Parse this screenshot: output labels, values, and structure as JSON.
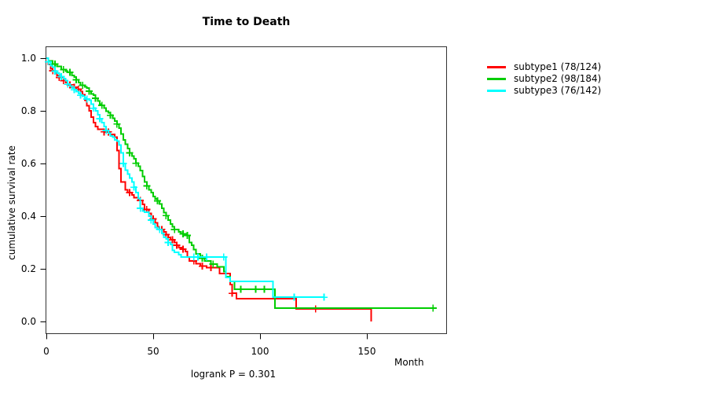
{
  "page": {
    "background": "#FFFFFF"
  },
  "chart_data": {
    "type": "line",
    "variant": "kaplan-meier-survival",
    "title": "Time to Death",
    "xlabel": "Month",
    "ylabel": "cumulative survival rate",
    "annotation": "logrank P = 0.301",
    "grid": false,
    "legend_position": "right-outside-top",
    "xlim": [
      0,
      187
    ],
    "ylim": [
      0,
      1
    ],
    "x_ticks": [
      {
        "value": 0,
        "label": "0"
      },
      {
        "value": 50,
        "label": "50"
      },
      {
        "value": 100,
        "label": "100"
      },
      {
        "value": 150,
        "label": "150"
      }
    ],
    "y_ticks": [
      {
        "value": 1.0,
        "label": "1.0"
      },
      {
        "value": 0.8,
        "label": "0.8"
      },
      {
        "value": 0.6,
        "label": "0.6"
      },
      {
        "value": 0.4,
        "label": "0.4"
      },
      {
        "value": 0.2,
        "label": "0.2"
      },
      {
        "value": 0.0,
        "label": "0.0"
      }
    ],
    "box_color": "#333333",
    "tick_color": "#000000",
    "series": [
      {
        "name": "subtype1",
        "label": "subtype1 (78/124)",
        "events": 78,
        "n": 124,
        "color": "#FF0000",
        "terminal": "event",
        "steps": [
          [
            0,
            1.0
          ],
          [
            1,
            0.976
          ],
          [
            2,
            0.96
          ],
          [
            3,
            0.952
          ],
          [
            4,
            0.944
          ],
          [
            5,
            0.935
          ],
          [
            6,
            0.927
          ],
          [
            7,
            0.915
          ],
          [
            9,
            0.907
          ],
          [
            10,
            0.899
          ],
          [
            12,
            0.89
          ],
          [
            14,
            0.882
          ],
          [
            16,
            0.873
          ],
          [
            17,
            0.861
          ],
          [
            18,
            0.84
          ],
          [
            19,
            0.82
          ],
          [
            20,
            0.8
          ],
          [
            21,
            0.776
          ],
          [
            22,
            0.755
          ],
          [
            23,
            0.74
          ],
          [
            24,
            0.73
          ],
          [
            27,
            0.72
          ],
          [
            30,
            0.71
          ],
          [
            32,
            0.7
          ],
          [
            33,
            0.65
          ],
          [
            34,
            0.58
          ],
          [
            35,
            0.53
          ],
          [
            37,
            0.5
          ],
          [
            38,
            0.49
          ],
          [
            40,
            0.48
          ],
          [
            41,
            0.47
          ],
          [
            43,
            0.46
          ],
          [
            45,
            0.445
          ],
          [
            46,
            0.425
          ],
          [
            48,
            0.41
          ],
          [
            49,
            0.39
          ],
          [
            51,
            0.375
          ],
          [
            52,
            0.36
          ],
          [
            53,
            0.35
          ],
          [
            55,
            0.34
          ],
          [
            56,
            0.33
          ],
          [
            57,
            0.32
          ],
          [
            58,
            0.31
          ],
          [
            60,
            0.3
          ],
          [
            61,
            0.29
          ],
          [
            62,
            0.28
          ],
          [
            64,
            0.275
          ],
          [
            65,
            0.265
          ],
          [
            66,
            0.245
          ],
          [
            67,
            0.23
          ],
          [
            70,
            0.22
          ],
          [
            72,
            0.21
          ],
          [
            75,
            0.205
          ],
          [
            81,
            0.182
          ],
          [
            86,
            0.14
          ],
          [
            87,
            0.107
          ],
          [
            89,
            0.087
          ],
          [
            117,
            0.048
          ],
          [
            152,
            0.0
          ]
        ],
        "censors": [
          [
            3,
            0.952
          ],
          [
            6,
            0.927
          ],
          [
            8,
            0.915
          ],
          [
            11,
            0.899
          ],
          [
            13,
            0.89
          ],
          [
            15,
            0.882
          ],
          [
            27,
            0.72
          ],
          [
            29,
            0.72
          ],
          [
            39,
            0.49
          ],
          [
            44,
            0.46
          ],
          [
            47,
            0.425
          ],
          [
            50,
            0.39
          ],
          [
            54,
            0.35
          ],
          [
            56,
            0.33
          ],
          [
            59,
            0.31
          ],
          [
            61,
            0.29
          ],
          [
            64,
            0.275
          ],
          [
            69,
            0.23
          ],
          [
            73,
            0.21
          ],
          [
            77,
            0.205
          ],
          [
            87,
            0.107
          ],
          [
            126,
            0.048
          ]
        ]
      },
      {
        "name": "subtype2",
        "label": "subtype2 (98/184)",
        "events": 98,
        "n": 184,
        "color": "#00CD00",
        "terminal": "censored",
        "steps": [
          [
            0,
            1.0
          ],
          [
            1,
            0.989
          ],
          [
            3,
            0.978
          ],
          [
            5,
            0.968
          ],
          [
            7,
            0.957
          ],
          [
            9,
            0.951
          ],
          [
            10,
            0.946
          ],
          [
            12,
            0.935
          ],
          [
            13,
            0.929
          ],
          [
            14,
            0.918
          ],
          [
            15,
            0.908
          ],
          [
            16,
            0.897
          ],
          [
            18,
            0.891
          ],
          [
            19,
            0.886
          ],
          [
            20,
            0.875
          ],
          [
            21,
            0.864
          ],
          [
            22,
            0.859
          ],
          [
            23,
            0.848
          ],
          [
            24,
            0.837
          ],
          [
            25,
            0.826
          ],
          [
            26,
            0.821
          ],
          [
            27,
            0.81
          ],
          [
            28,
            0.799
          ],
          [
            29,
            0.793
          ],
          [
            30,
            0.783
          ],
          [
            31,
            0.772
          ],
          [
            32,
            0.761
          ],
          [
            33,
            0.75
          ],
          [
            34,
            0.734
          ],
          [
            35,
            0.712
          ],
          [
            36,
            0.69
          ],
          [
            37,
            0.673
          ],
          [
            38,
            0.657
          ],
          [
            39,
            0.64
          ],
          [
            40,
            0.629
          ],
          [
            41,
            0.618
          ],
          [
            42,
            0.601
          ],
          [
            43,
            0.59
          ],
          [
            44,
            0.573
          ],
          [
            45,
            0.55
          ],
          [
            46,
            0.53
          ],
          [
            47,
            0.515
          ],
          [
            48,
            0.5
          ],
          [
            49,
            0.49
          ],
          [
            50,
            0.475
          ],
          [
            51,
            0.465
          ],
          [
            52,
            0.458
          ],
          [
            53,
            0.447
          ],
          [
            54,
            0.43
          ],
          [
            55,
            0.413
          ],
          [
            56,
            0.402
          ],
          [
            57,
            0.385
          ],
          [
            58,
            0.37
          ],
          [
            59,
            0.36
          ],
          [
            60,
            0.349
          ],
          [
            62,
            0.34
          ],
          [
            63,
            0.333
          ],
          [
            65,
            0.327
          ],
          [
            67,
            0.3
          ],
          [
            68,
            0.29
          ],
          [
            69,
            0.273
          ],
          [
            70,
            0.257
          ],
          [
            72,
            0.24
          ],
          [
            74,
            0.23
          ],
          [
            77,
            0.218
          ],
          [
            80,
            0.207
          ],
          [
            83,
            0.19
          ],
          [
            84,
            0.17
          ],
          [
            86,
            0.152
          ],
          [
            88,
            0.123
          ],
          [
            107,
            0.051
          ],
          [
            181,
            0.051
          ]
        ],
        "censors": [
          [
            4,
            0.978
          ],
          [
            8,
            0.957
          ],
          [
            11,
            0.946
          ],
          [
            14,
            0.918
          ],
          [
            17,
            0.897
          ],
          [
            20,
            0.875
          ],
          [
            23,
            0.848
          ],
          [
            26,
            0.821
          ],
          [
            30,
            0.783
          ],
          [
            33,
            0.75
          ],
          [
            39,
            0.64
          ],
          [
            42,
            0.601
          ],
          [
            47,
            0.515
          ],
          [
            52,
            0.458
          ],
          [
            56,
            0.402
          ],
          [
            60,
            0.349
          ],
          [
            64,
            0.333
          ],
          [
            66,
            0.327
          ],
          [
            73,
            0.24
          ],
          [
            78,
            0.218
          ],
          [
            91,
            0.123
          ],
          [
            98,
            0.123
          ],
          [
            102,
            0.123
          ],
          [
            181,
            0.051
          ]
        ]
      },
      {
        "name": "subtype3",
        "label": "subtype3 (76/142)",
        "events": 76,
        "n": 142,
        "color": "#00FFFF",
        "terminal": "censored",
        "steps": [
          [
            0,
            1.0
          ],
          [
            1,
            0.986
          ],
          [
            2,
            0.972
          ],
          [
            3,
            0.965
          ],
          [
            4,
            0.951
          ],
          [
            5,
            0.944
          ],
          [
            6,
            0.937
          ],
          [
            7,
            0.93
          ],
          [
            8,
            0.923
          ],
          [
            9,
            0.915
          ],
          [
            10,
            0.901
          ],
          [
            11,
            0.894
          ],
          [
            12,
            0.887
          ],
          [
            13,
            0.88
          ],
          [
            14,
            0.873
          ],
          [
            15,
            0.866
          ],
          [
            16,
            0.859
          ],
          [
            17,
            0.855
          ],
          [
            18,
            0.85
          ],
          [
            19,
            0.845
          ],
          [
            20,
            0.84
          ],
          [
            21,
            0.825
          ],
          [
            22,
            0.81
          ],
          [
            23,
            0.8
          ],
          [
            24,
            0.785
          ],
          [
            25,
            0.77
          ],
          [
            26,
            0.755
          ],
          [
            27,
            0.74
          ],
          [
            28,
            0.725
          ],
          [
            29,
            0.715
          ],
          [
            30,
            0.705
          ],
          [
            31,
            0.7
          ],
          [
            32,
            0.69
          ],
          [
            33,
            0.685
          ],
          [
            34,
            0.67
          ],
          [
            35,
            0.64
          ],
          [
            36,
            0.6
          ],
          [
            37,
            0.575
          ],
          [
            38,
            0.56
          ],
          [
            39,
            0.545
          ],
          [
            40,
            0.53
          ],
          [
            41,
            0.51
          ],
          [
            42,
            0.49
          ],
          [
            43,
            0.467
          ],
          [
            44,
            0.43
          ],
          [
            45,
            0.42
          ],
          [
            46,
            0.415
          ],
          [
            48,
            0.4
          ],
          [
            49,
            0.385
          ],
          [
            50,
            0.37
          ],
          [
            51,
            0.357
          ],
          [
            52,
            0.35
          ],
          [
            54,
            0.335
          ],
          [
            55,
            0.32
          ],
          [
            56,
            0.313
          ],
          [
            57,
            0.3
          ],
          [
            58,
            0.293
          ],
          [
            59,
            0.27
          ],
          [
            60,
            0.263
          ],
          [
            62,
            0.253
          ],
          [
            63,
            0.245
          ],
          [
            84,
            0.167
          ],
          [
            86,
            0.152
          ],
          [
            106,
            0.092
          ],
          [
            130,
            0.092
          ]
        ],
        "censors": [
          [
            1,
            0.986
          ],
          [
            4,
            0.951
          ],
          [
            7,
            0.93
          ],
          [
            10,
            0.901
          ],
          [
            13,
            0.88
          ],
          [
            16,
            0.859
          ],
          [
            19,
            0.845
          ],
          [
            22,
            0.81
          ],
          [
            25,
            0.77
          ],
          [
            28,
            0.725
          ],
          [
            36,
            0.6
          ],
          [
            41,
            0.51
          ],
          [
            44,
            0.43
          ],
          [
            49,
            0.385
          ],
          [
            53,
            0.35
          ],
          [
            57,
            0.3
          ],
          [
            69,
            0.245
          ],
          [
            71,
            0.245
          ],
          [
            75,
            0.245
          ],
          [
            83,
            0.245
          ],
          [
            116,
            0.092
          ],
          [
            130,
            0.092
          ]
        ]
      }
    ]
  }
}
